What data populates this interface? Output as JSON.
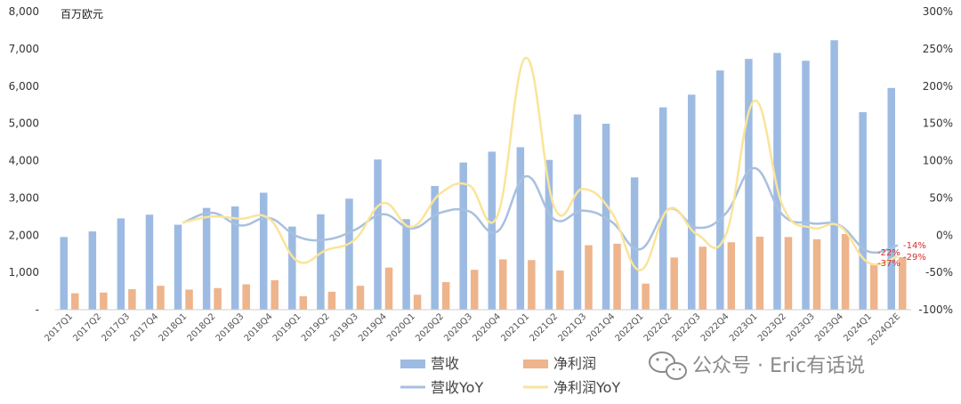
{
  "chart_data": {
    "type": "bar",
    "unit_label": "百万欧元",
    "categories": [
      "2017Q1",
      "2017Q2",
      "2017Q3",
      "2017Q4",
      "2018Q1",
      "2018Q2",
      "2018Q3",
      "2018Q4",
      "2019Q1",
      "2019Q2",
      "2019Q3",
      "2019Q4",
      "2020Q1",
      "2020Q2",
      "2020Q3",
      "2020Q4",
      "2021Q1",
      "2021Q2",
      "2021Q3",
      "2021Q4",
      "2022Q1",
      "2022Q2",
      "2022Q3",
      "2022Q4",
      "2023Q1",
      "2023Q2",
      "2023Q3",
      "2023Q4",
      "2024Q1",
      "2024Q2E"
    ],
    "y_left": {
      "min": 0,
      "max": 8000,
      "ticks": [
        "-",
        "1,000",
        "2,000",
        "3,000",
        "4,000",
        "5,000",
        "6,000",
        "7,000",
        "8,000"
      ]
    },
    "y_right": {
      "min": -100,
      "max": 300,
      "ticks": [
        "-100%",
        "-50%",
        "0%",
        "50%",
        "100%",
        "150%",
        "200%",
        "250%",
        "300%"
      ]
    },
    "series": [
      {
        "name": "营收",
        "type": "bar",
        "axis": "left",
        "color": "#9dbbe2",
        "values": [
          1950,
          2100,
          2450,
          2550,
          2280,
          2730,
          2770,
          3140,
          2230,
          2560,
          2980,
          4030,
          2430,
          3320,
          3950,
          4240,
          4360,
          4020,
          5240,
          4990,
          3550,
          5430,
          5770,
          6420,
          6730,
          6890,
          6680,
          7230,
          5300,
          5950
        ]
      },
      {
        "name": "净利润",
        "type": "bar",
        "axis": "left",
        "color": "#eeb48c",
        "values": [
          440,
          460,
          550,
          640,
          540,
          580,
          680,
          790,
          360,
          480,
          640,
          1130,
          400,
          740,
          1070,
          1350,
          1330,
          1050,
          1730,
          1770,
          700,
          1400,
          1690,
          1810,
          1960,
          1950,
          1890,
          2030,
          1200,
          1410
        ]
      },
      {
        "name": "营收YoY",
        "type": "line",
        "axis": "right",
        "color": "#a8c0e0",
        "values": [
          null,
          null,
          null,
          null,
          17,
          30,
          13,
          23,
          -2,
          -6,
          7,
          28,
          9,
          30,
          32,
          5,
          79,
          21,
          33,
          18,
          -19,
          35,
          10,
          29,
          90,
          27,
          16,
          13,
          -22,
          -14
        ]
      },
      {
        "name": "净利润YoY",
        "type": "line",
        "axis": "right",
        "color": "#fae49a",
        "values": [
          null,
          null,
          null,
          null,
          17,
          25,
          22,
          22,
          -35,
          -20,
          -6,
          43,
          11,
          56,
          67,
          26,
          238,
          37,
          62,
          31,
          -47,
          35,
          1,
          0,
          180,
          39,
          10,
          12,
          -37,
          -29
        ]
      }
    ],
    "annotations": {
      "revenue_yoy_last": "-22%",
      "revenue_yoy_est": "-14%",
      "profit_yoy_last": "-37%",
      "profit_yoy_est": "-29%"
    },
    "legend": {
      "position": "bottom-center"
    },
    "watermark": "公众号 · Eric有话说",
    "grid": false
  }
}
